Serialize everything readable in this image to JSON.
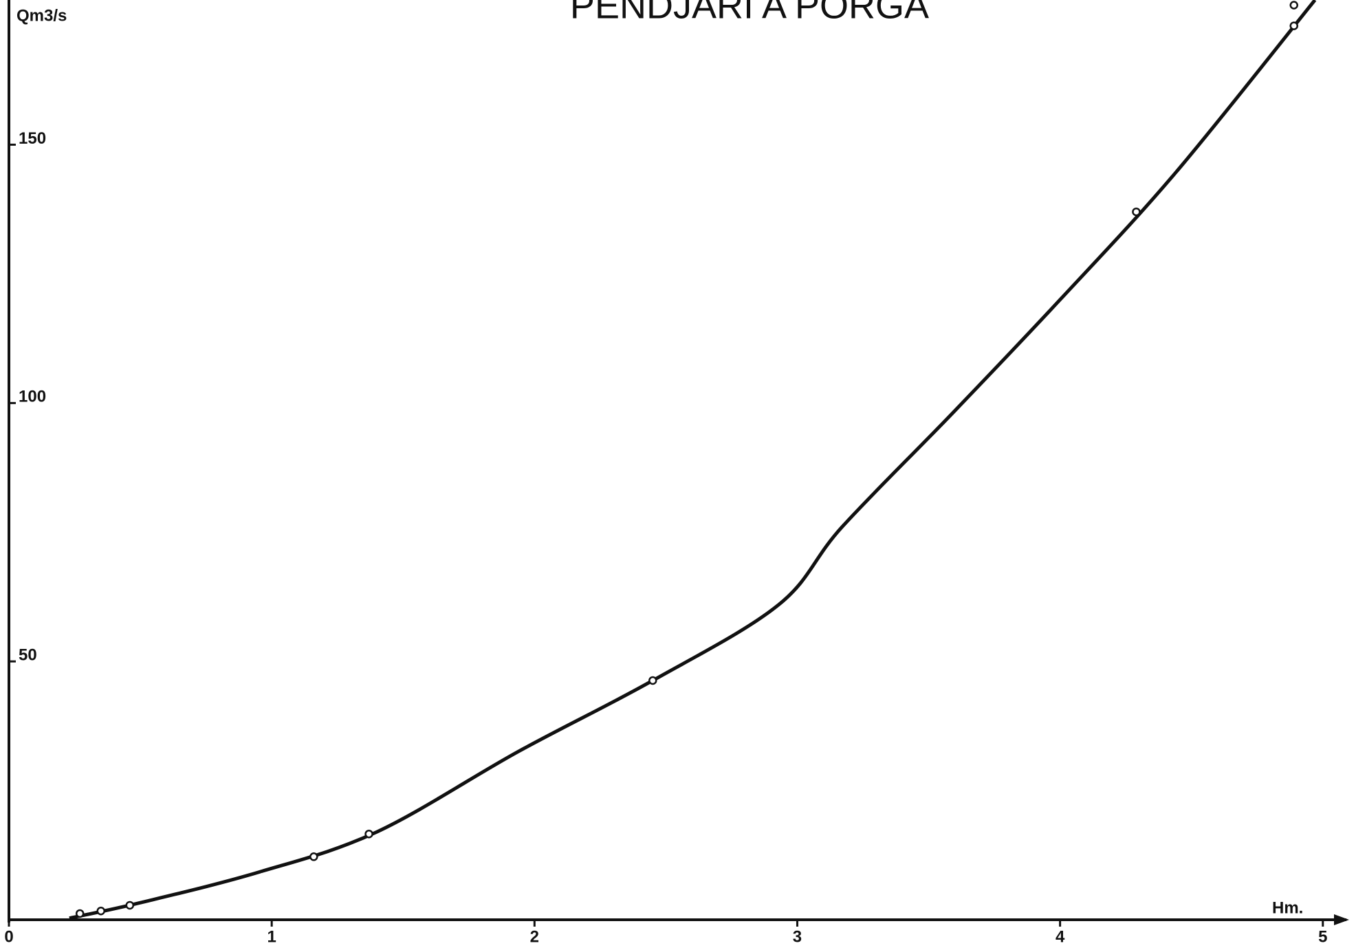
{
  "chart_data": {
    "type": "scatter",
    "title": "PENDJARI A PORGA",
    "y_label": "Qm3/s",
    "x_label": "Hm.",
    "xlim": [
      0,
      5.1
    ],
    "ylim": [
      0,
      178
    ],
    "xticks": [
      0,
      1,
      2,
      3,
      4,
      5
    ],
    "yticks": [
      50,
      100,
      150
    ],
    "points": {
      "x": [
        0.27,
        0.35,
        0.46,
        1.16,
        1.37,
        2.45,
        4.29,
        4.89,
        4.89
      ],
      "y": [
        1.2,
        1.7,
        2.8,
        12.2,
        16.6,
        46.3,
        137,
        173,
        177
      ]
    },
    "curve": {
      "x": [
        0.23,
        0.5,
        0.95,
        1.4,
        1.94,
        2.45,
        2.93,
        3.17,
        3.59,
        4.0,
        4.44,
        4.97
      ],
      "y": [
        0.3,
        3.3,
        9.2,
        17,
        32.6,
        46.3,
        61,
        76,
        98,
        120,
        144.6,
        178
      ]
    },
    "color": "#111111"
  }
}
